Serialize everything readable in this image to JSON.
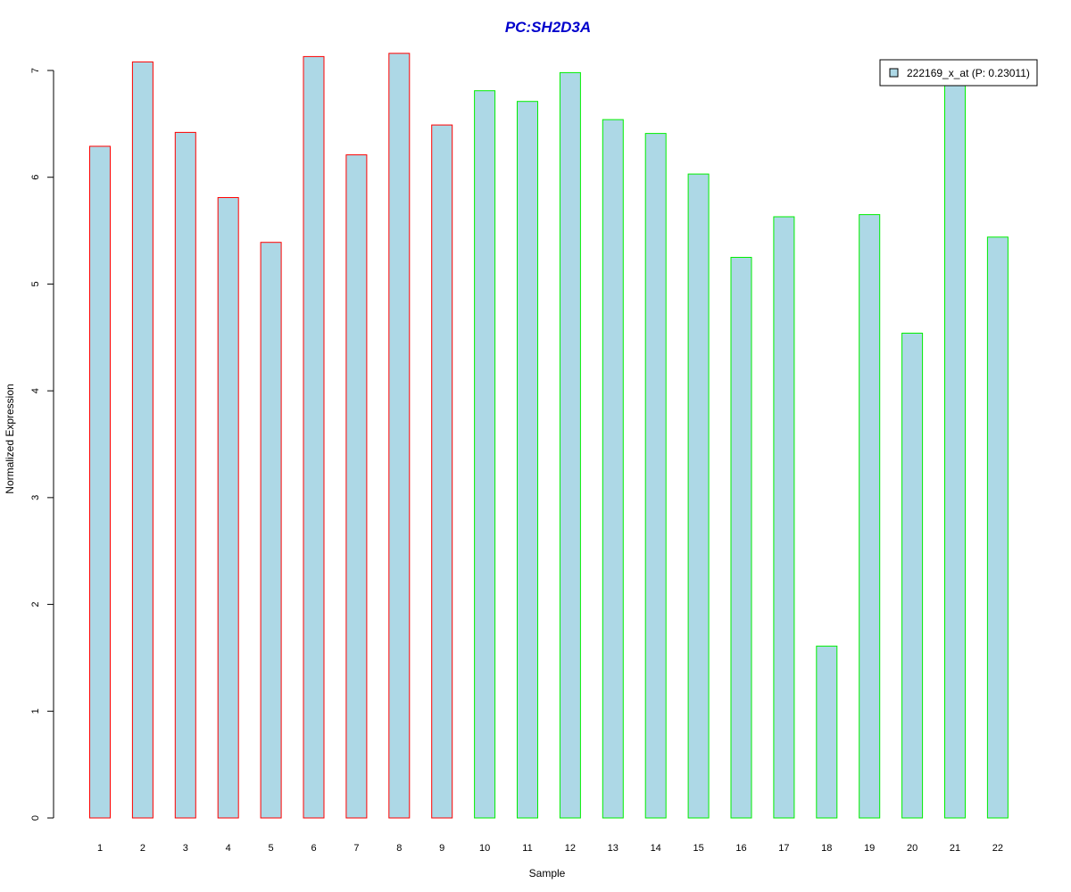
{
  "chart_data": {
    "type": "bar",
    "title": "PC:SH2D3A",
    "xlabel": "Sample",
    "ylabel": "Normalized Expression",
    "ylim": [
      0,
      7
    ],
    "yticks": [
      "0",
      "1",
      "2",
      "3",
      "4",
      "5",
      "6",
      "7"
    ],
    "categories": [
      "1",
      "2",
      "3",
      "4",
      "5",
      "6",
      "7",
      "8",
      "9",
      "10",
      "11",
      "12",
      "13",
      "14",
      "15",
      "16",
      "17",
      "18",
      "19",
      "20",
      "21",
      "22"
    ],
    "series": [
      {
        "name": "222169_x_at (P: 0.23011)",
        "values": [
          6.29,
          7.08,
          6.42,
          5.81,
          5.39,
          7.13,
          6.21,
          7.16,
          6.49,
          6.81,
          6.71,
          6.98,
          6.54,
          6.41,
          6.03,
          5.25,
          5.63,
          1.61,
          5.65,
          4.54,
          6.88,
          5.44
        ]
      }
    ],
    "groups": [
      {
        "samples": [
          1,
          9
        ],
        "outline_color": "#ff0000"
      },
      {
        "samples": [
          10,
          22
        ],
        "outline_color": "#00ee00"
      }
    ],
    "colors": {
      "bar_fill": "#add8e6",
      "title": "#0000cc",
      "axis": "#000000"
    },
    "grid": false,
    "legend_position": "top-right"
  }
}
